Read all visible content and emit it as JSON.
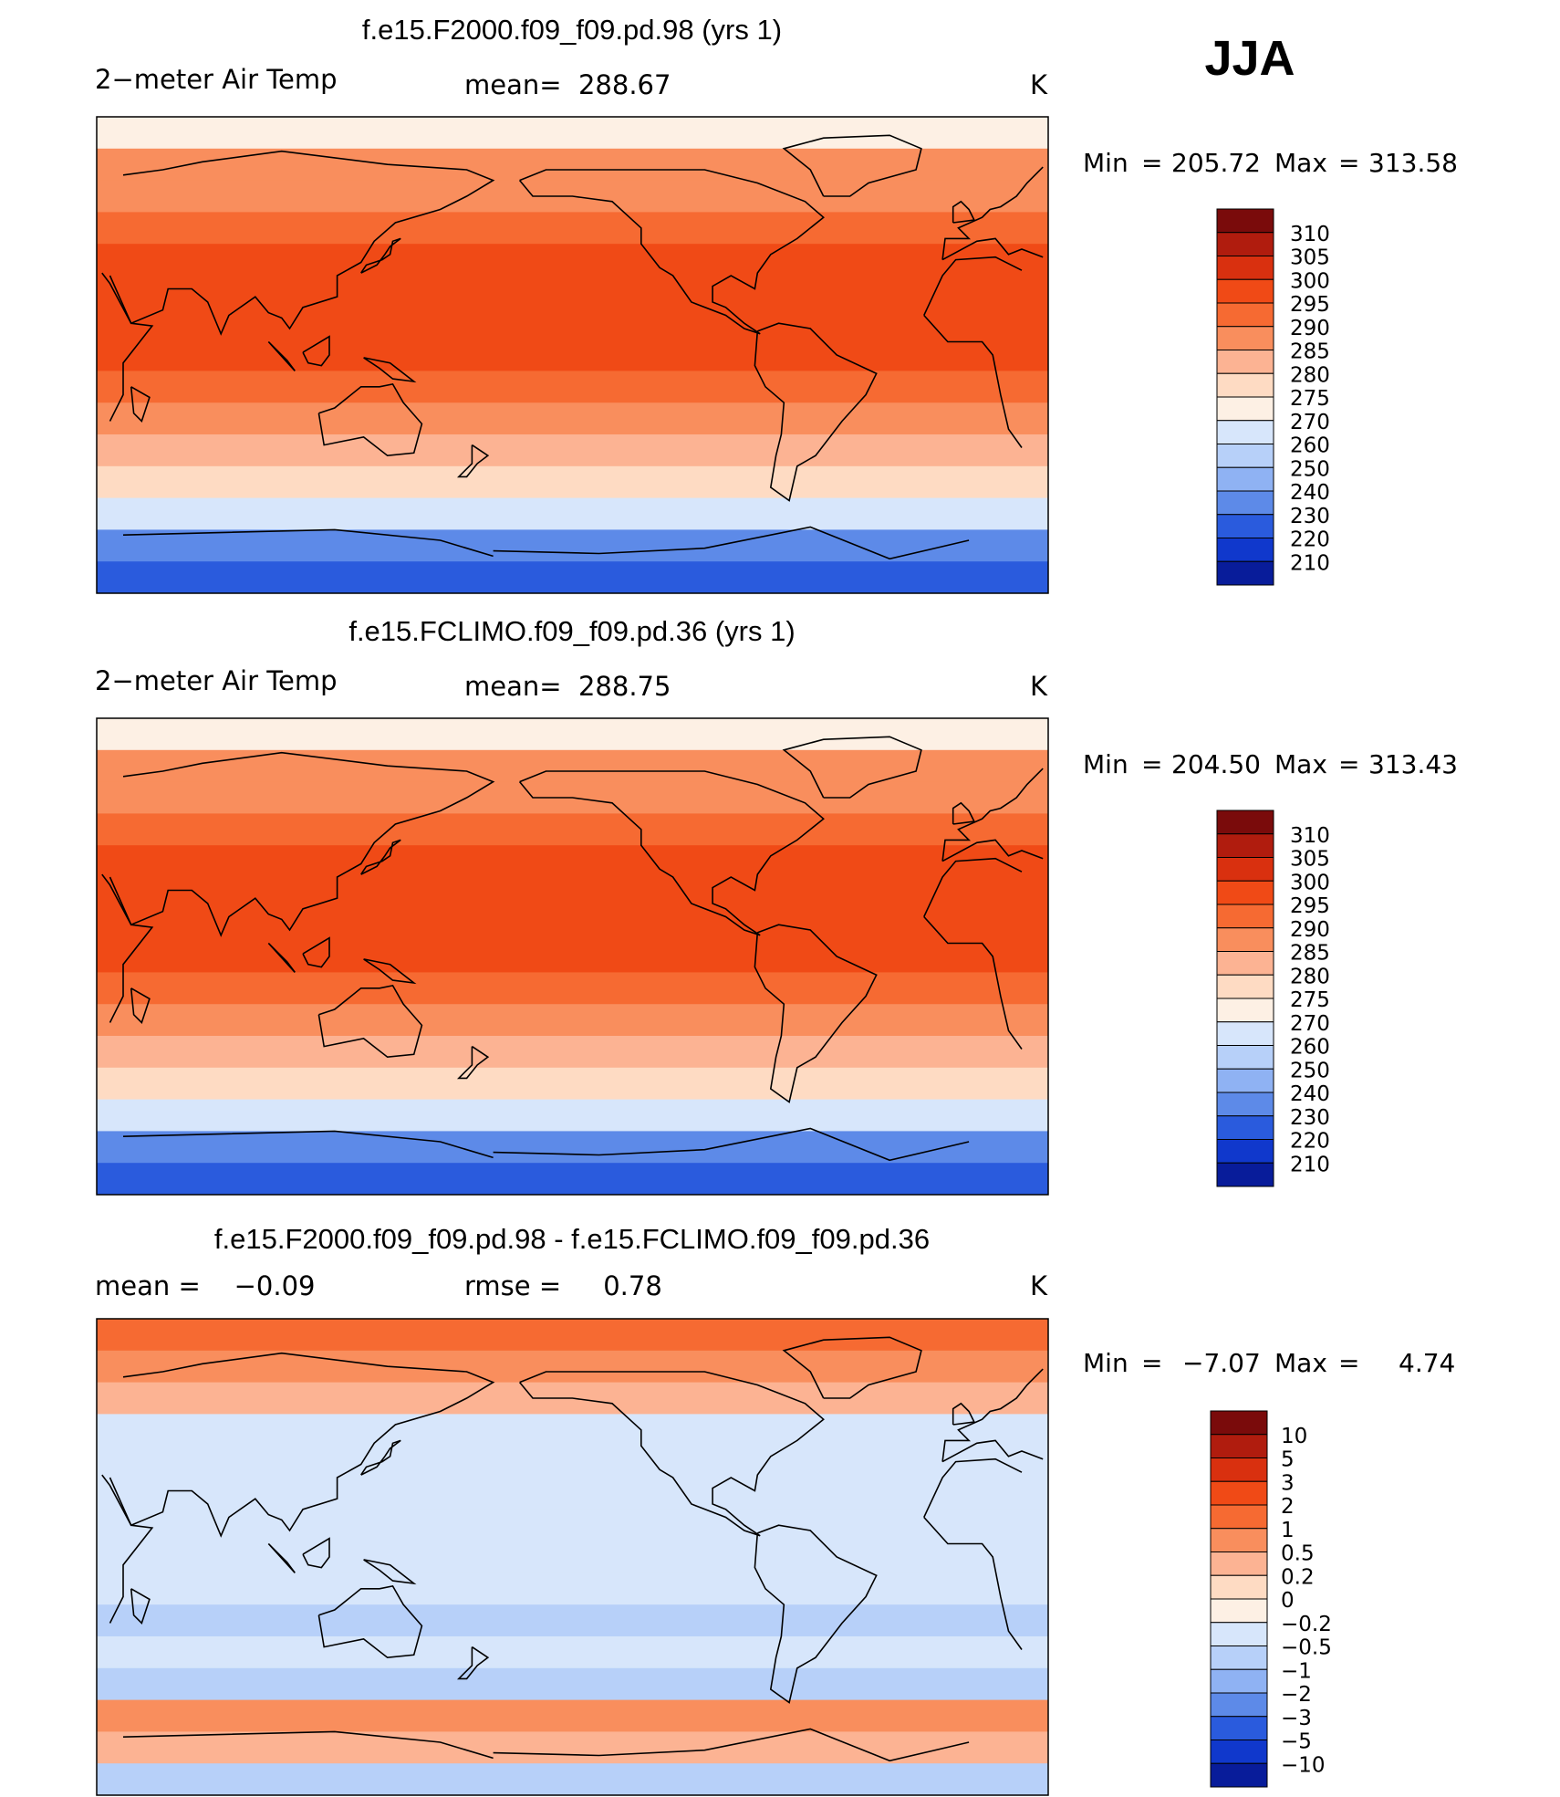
{
  "header": {
    "season": "JJA"
  },
  "chart_data": [
    {
      "type": "heatmap",
      "title": "f.e15.F2000.f09_f09.pd.98 (yrs 1)",
      "variable": "2−meter Air Temp",
      "stat_text": "mean=  288.67",
      "mean": 288.67,
      "units": "K",
      "min": 205.72,
      "max": 313.58,
      "min_label": "Min",
      "max_label": "Max",
      "min_text": "205.72",
      "max_text": "313.58",
      "levels": [
        "310",
        "305",
        "300",
        "295",
        "290",
        "285",
        "280",
        "275",
        "270",
        "260",
        "250",
        "240",
        "230",
        "220",
        "210"
      ],
      "colors": [
        "#7a0b0b",
        "#b01c0e",
        "#d9300f",
        "#f04a16",
        "#f66a32",
        "#f98e5d",
        "#fcb393",
        "#fedbc3",
        "#fdf0e4",
        "#d7e6fb",
        "#b7d0f9",
        "#8fb2f3",
        "#5d8ae8",
        "#2a5bdd",
        "#1038cc",
        "#081c9a"
      ],
      "zonal_band_values_K": [
        272,
        286,
        289,
        293,
        297,
        298,
        297,
        295,
        293,
        289,
        283,
        276,
        262,
        238,
        222
      ]
    },
    {
      "type": "heatmap",
      "title": "f.e15.FCLIMO.f09_f09.pd.36 (yrs 1)",
      "variable": "2−meter Air Temp",
      "stat_text": "mean=  288.75",
      "mean": 288.75,
      "units": "K",
      "min": 204.5,
      "max": 313.43,
      "min_label": "Min",
      "max_label": "Max",
      "min_text": "204.50",
      "max_text": "313.43",
      "levels": [
        "310",
        "305",
        "300",
        "295",
        "290",
        "285",
        "280",
        "275",
        "270",
        "260",
        "250",
        "240",
        "230",
        "220",
        "210"
      ],
      "colors": [
        "#7a0b0b",
        "#b01c0e",
        "#d9300f",
        "#f04a16",
        "#f66a32",
        "#f98e5d",
        "#fcb393",
        "#fedbc3",
        "#fdf0e4",
        "#d7e6fb",
        "#b7d0f9",
        "#8fb2f3",
        "#5d8ae8",
        "#2a5bdd",
        "#1038cc",
        "#081c9a"
      ],
      "zonal_band_values_K": [
        272,
        286,
        289,
        293,
        297,
        298,
        297,
        295,
        293,
        289,
        283,
        276,
        262,
        238,
        222
      ]
    },
    {
      "type": "heatmap",
      "title": "f.e15.F2000.f09_f09.pd.98 - f.e15.FCLIMO.f09_f09.pd.36",
      "mean_text": "mean =    −0.09",
      "rmse_text": "rmse =     0.78",
      "mean": -0.09,
      "rmse": 0.78,
      "units": "K",
      "min": -7.07,
      "max": 4.74,
      "min_label": "Min",
      "max_label": "Max",
      "min_text": "−7.07",
      "max_text": "4.74",
      "levels": [
        "10",
        "5",
        "3",
        "2",
        "1",
        "0.5",
        "0.2",
        "0",
        "−0.2",
        "−0.5",
        "−1",
        "−2",
        "−3",
        "−5",
        "−10"
      ],
      "colors": [
        "#7a0b0b",
        "#b01c0e",
        "#d9300f",
        "#f04a16",
        "#f66a32",
        "#f98e5d",
        "#fcb393",
        "#fedbc3",
        "#fdf0e4",
        "#d7e6fb",
        "#b7d0f9",
        "#8fb2f3",
        "#5d8ae8",
        "#2a5bdd",
        "#1038cc",
        "#081c9a"
      ],
      "zonal_band_values_K": [
        1.2,
        0.6,
        0.4,
        -0.3,
        -0.3,
        -0.3,
        -0.4,
        -0.3,
        -0.3,
        -0.6,
        -0.4,
        -0.8,
        0.7,
        0.4,
        -0.8
      ]
    }
  ]
}
